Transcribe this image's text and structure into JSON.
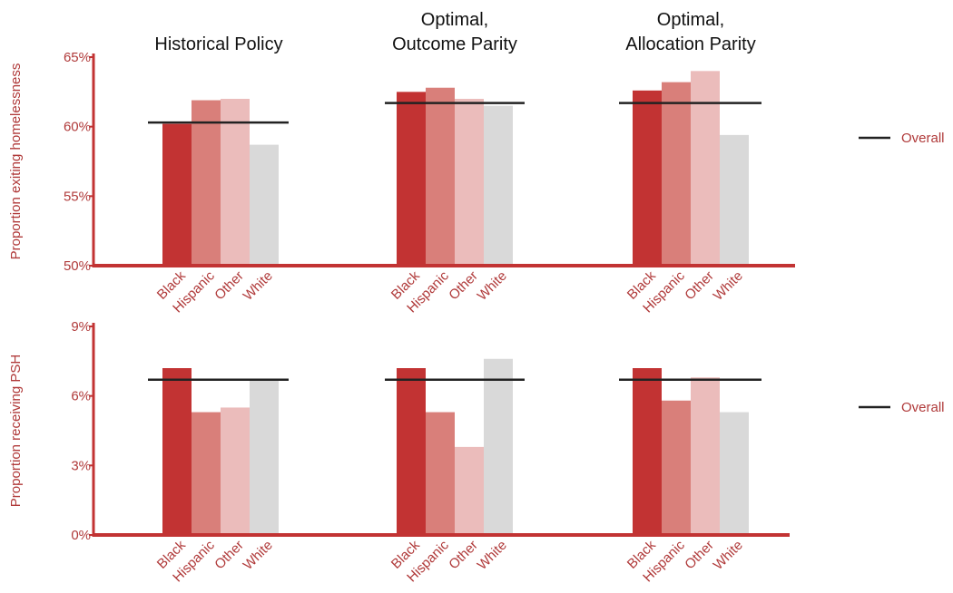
{
  "chart_data": [
    {
      "type": "bar",
      "ylabel": "Proportion exiting homelessness",
      "ylim": [
        50,
        65
      ],
      "yticks": [
        50,
        55,
        60,
        65
      ],
      "ytick_suffix": "%",
      "categories": [
        "Black",
        "Hispanic",
        "Other",
        "White"
      ],
      "panels": [
        {
          "title_lines": [
            "Historical Policy"
          ],
          "values": [
            60.2,
            61.9,
            62.0,
            58.7
          ],
          "overall": 60.3
        },
        {
          "title_lines": [
            "Optimal,",
            "Outcome Parity"
          ],
          "values": [
            62.5,
            62.8,
            62.0,
            61.5
          ],
          "overall": 61.7
        },
        {
          "title_lines": [
            "Optimal,",
            "Allocation Parity"
          ],
          "values": [
            62.6,
            63.2,
            64.0,
            59.4
          ],
          "overall": 61.7
        }
      ],
      "legend": {
        "label": "Overall"
      }
    },
    {
      "type": "bar",
      "ylabel": "Proportion receiving PSH",
      "ylim": [
        0,
        9
      ],
      "yticks": [
        0,
        3,
        6,
        9
      ],
      "ytick_suffix": "%",
      "categories": [
        "Black",
        "Hispanic",
        "Other",
        "White"
      ],
      "panels": [
        {
          "values": [
            7.2,
            5.3,
            5.5,
            6.7
          ],
          "overall": 6.7
        },
        {
          "values": [
            7.2,
            5.3,
            3.8,
            7.6
          ],
          "overall": 6.7
        },
        {
          "values": [
            7.2,
            5.8,
            6.8,
            5.3
          ],
          "overall": 6.7
        }
      ],
      "legend": {
        "label": "Overall"
      }
    }
  ],
  "colors": {
    "categories": [
      "#c23333",
      "#d97f7a",
      "#ebbcbb",
      "#d9d9d9"
    ],
    "axis": "#c23333",
    "overall_line": "#222222",
    "label_text": "#b03a3a"
  }
}
